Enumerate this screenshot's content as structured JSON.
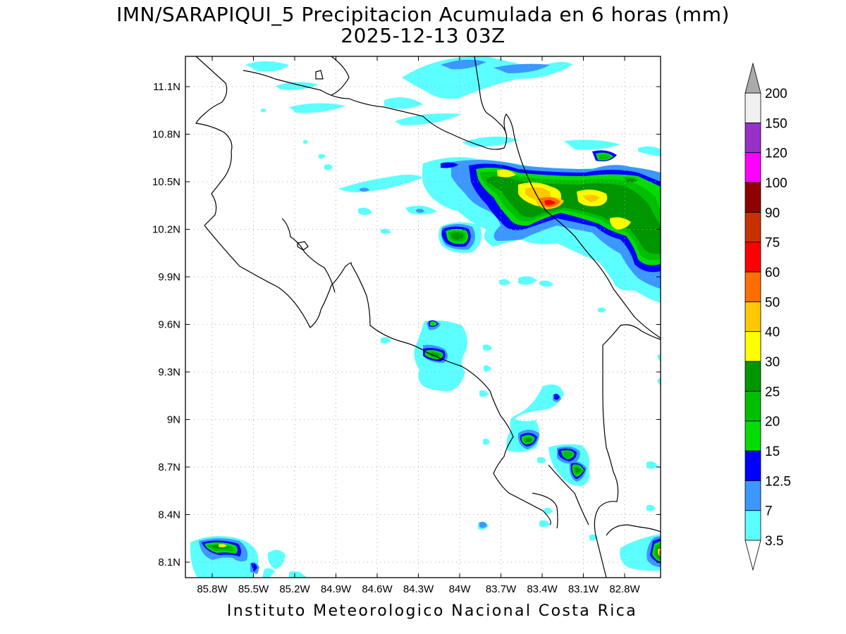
{
  "title": {
    "line1": "IMN/SARAPIQUI_5 Precipitacion Acumulada en 6 horas (mm)",
    "line2": "2025-12-13 03Z"
  },
  "credit": "Instituto Meteorologico Nacional Costa Rica",
  "map": {
    "lon_labels": [
      "85.8W",
      "85.5W",
      "85.2W",
      "84.9W",
      "84.6W",
      "84.3W",
      "84W",
      "83.7W",
      "83.4W",
      "83.1W",
      "82.8W"
    ],
    "lat_labels": [
      "11.1N",
      "10.8N",
      "10.5N",
      "10.2N",
      "9.9N",
      "9.6N",
      "9.3N",
      "9N",
      "8.7N",
      "8.4N",
      "8.1N"
    ],
    "frame_color": "#000000",
    "gridline_color": "#aaaaaa"
  },
  "colorbar": {
    "levels": [
      "3.5",
      "7",
      "12.5",
      "15",
      "20",
      "25",
      "30",
      "40",
      "50",
      "60",
      "75",
      "90",
      "100",
      "120",
      "150",
      "200"
    ],
    "colors": [
      "#5cffff",
      "#3c97ff",
      "#0000ff",
      "#05dc05",
      "#00be00",
      "#009600",
      "#ffff00",
      "#ffc800",
      "#ff6e00",
      "#ff0000",
      "#c83200",
      "#910000",
      "#ff00ff",
      "#9632c8",
      "#f0f0f0",
      "#aaaaaa"
    ]
  },
  "legend_colors": {
    "c35": "#5cffff",
    "c7": "#3c97ff",
    "c125": "#0000ff",
    "c15": "#05dc05",
    "c20": "#00be00",
    "c25": "#009600",
    "c30": "#ffff00",
    "c40": "#ffc800",
    "c50": "#ff6e00",
    "c60": "#ff0000"
  }
}
